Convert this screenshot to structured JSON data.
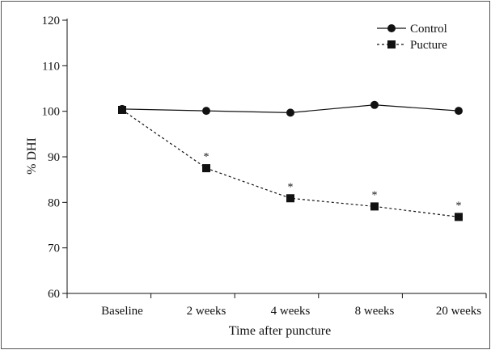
{
  "chart_data": {
    "type": "line",
    "categories": [
      "Baseline",
      "2 weeks",
      "4 weeks",
      "8 weeks",
      "20 weeks"
    ],
    "ylabel": "% DHI",
    "xlabel": "Time after puncture",
    "ylim": [
      60,
      120
    ],
    "yticks": [
      60,
      70,
      80,
      90,
      100,
      110,
      120
    ],
    "legend_position": "top-right",
    "series": [
      {
        "name": "Control",
        "marker": "circle",
        "dashed": false,
        "values": [
          100.5,
          100.1,
          99.7,
          101.4,
          100.1
        ]
      },
      {
        "name": "Pucture",
        "marker": "square",
        "dashed": true,
        "values": [
          100.3,
          87.5,
          80.9,
          79.1,
          76.8
        ]
      }
    ],
    "annotations": [
      {
        "text": "*",
        "category": "2 weeks",
        "series": "Pucture"
      },
      {
        "text": "*",
        "category": "4 weeks",
        "series": "Pucture"
      },
      {
        "text": "*",
        "category": "8 weeks",
        "series": "Pucture"
      },
      {
        "text": "*",
        "category": "20 weeks",
        "series": "Pucture"
      }
    ]
  }
}
